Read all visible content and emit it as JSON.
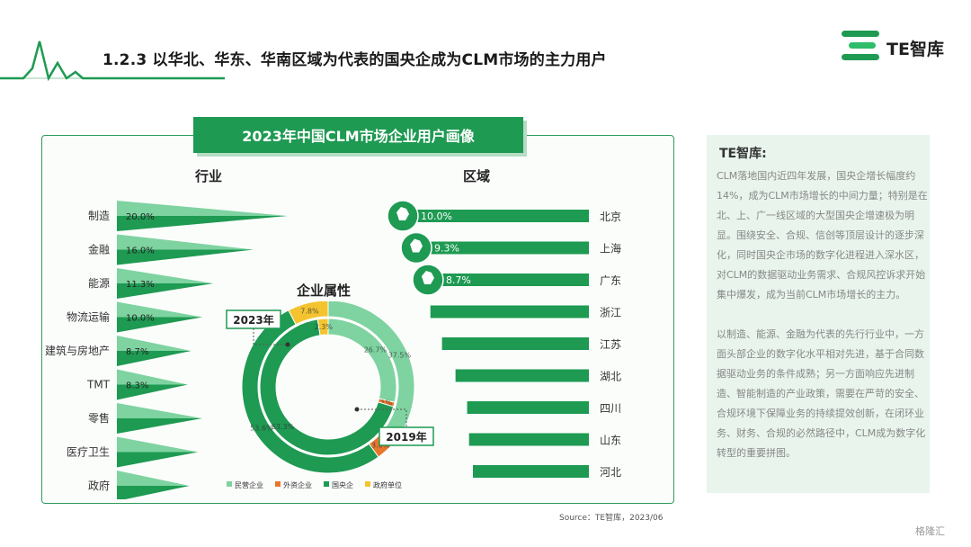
{
  "header": {
    "title": "1.2.3 以华北、华东、华南区域为代表的国央企成为CLM市场的主力用户",
    "logo_text": "TE智库"
  },
  "panel": {
    "title": "2023年中国CLM市场企业用户画像",
    "industry_title": "行业",
    "region_title": "区域",
    "attr_title": "企业属性"
  },
  "chart_data": [
    {
      "type": "bar",
      "title": "行业",
      "categories": [
        "制造",
        "金融",
        "能源",
        "物流运输",
        "建筑与房地产",
        "TMT",
        "零售",
        "医疗卫生",
        "政府"
      ],
      "values": [
        20.0,
        16.0,
        11.3,
        10.0,
        8.7,
        8.3,
        null,
        null,
        null
      ],
      "value_labels": [
        "20.0%",
        "16.0%",
        "11.3%",
        "10.0%",
        "8.7%",
        "8.3%",
        "",
        "",
        ""
      ]
    },
    {
      "type": "bar",
      "title": "区域",
      "categories": [
        "北京",
        "上海",
        "广东",
        "浙江",
        "江苏",
        "湖北",
        "四川",
        "山东",
        "河北"
      ],
      "values": [
        10.0,
        9.3,
        8.7,
        8.2,
        7.6,
        6.9,
        6.3,
        6.2,
        6.0
      ],
      "value_labels": [
        "10.0%",
        "9.3%",
        "8.7%",
        "",
        "",
        "",
        "",
        "",
        ""
      ]
    },
    {
      "type": "pie",
      "title": "企业属性",
      "series": [
        {
          "name": "2023年",
          "values": [
            26.7,
            1.0,
            63.3,
            2.3
          ],
          "labels": [
            "26.7%",
            "1%",
            "63.3%",
            "2.3%"
          ]
        },
        {
          "name": "2019年",
          "values": [
            37.5,
            3.6,
            53.6,
            7.8
          ],
          "labels": [
            "37.5%",
            "3.6%",
            "53.6%",
            "7.8%"
          ]
        }
      ],
      "categories": [
        "民营企业",
        "外资企业",
        "国央企",
        "政府单位"
      ],
      "colors": [
        "#7ed3a0",
        "#e8772e",
        "#1e9a52",
        "#f4c430"
      ],
      "legend": "bottom"
    }
  ],
  "side_panel": {
    "title": "TE智库:",
    "p1": "CLM落地国内近四年发展，国央企增长幅度约14%，成为CLM市场增长的中间力量；特别是在北、上、广一线区域的大型国央企增速极为明显。围绕安全、合规、信创等顶层设计的逐步深化，同时国央企市场的数字化进程进入深水区，对CLM的数据驱动业务需求、合规风控诉求开始集中爆发，成为当前CLM市场增长的主力。",
    "p2": "以制造、能源、金融为代表的先行行业中，一方面头部企业的数字化水平相对先进，基于合同数据驱动业务的条件成熟；另一方面响应先进制造、智能制造的产业政策，需要在严苛的安全、合规环境下保障业务的持续提效创新，在闭环业务、财务、合规的必然路径中，CLM成为数字化转型的重要拼图。"
  },
  "source": "Source：TE智库，2023/06",
  "watermark": "格隆汇",
  "colors": {
    "brand": "#1e9a52",
    "light": "#7ed3a0",
    "orange": "#e8772e",
    "yellow": "#f4c430"
  }
}
